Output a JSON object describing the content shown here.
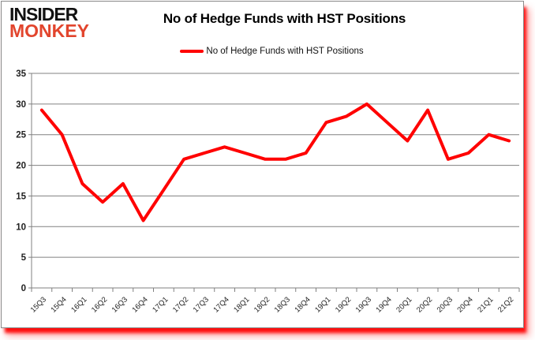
{
  "logo": {
    "line1": "INSIDER",
    "line2": "MONKEY"
  },
  "title": "No of Hedge Funds with HST Positions",
  "legend": {
    "label": "No of Hedge Funds with HST Positions"
  },
  "colors": {
    "line": "#ff0000",
    "logo_black": "#111111",
    "logo_red": "#e2452d",
    "grid": "#808080",
    "axis_text": "#212121",
    "shadow_red": "#ff0000"
  },
  "chart_data": {
    "type": "line",
    "title": "No of Hedge Funds with HST Positions",
    "categories": [
      "15Q3",
      "15Q4",
      "16Q1",
      "16Q2",
      "16Q3",
      "16Q4",
      "17Q1",
      "17Q2",
      "17Q3",
      "17Q4",
      "18Q1",
      "18Q2",
      "18Q3",
      "18Q4",
      "19Q1",
      "19Q2",
      "19Q3",
      "19Q4",
      "20Q1",
      "20Q2",
      "20Q3",
      "20Q4",
      "21Q1",
      "21Q2"
    ],
    "series": [
      {
        "name": "No of Hedge Funds with HST Positions",
        "color": "#ff0000",
        "values": [
          29,
          25,
          17,
          14,
          17,
          11,
          16,
          21,
          22,
          23,
          22,
          21,
          21,
          22,
          27,
          28,
          30,
          27,
          24,
          29,
          21,
          22,
          25,
          24
        ]
      }
    ],
    "ylim": [
      0,
      35
    ],
    "ytick_step": 5,
    "grid": true,
    "legend_position": "top"
  }
}
